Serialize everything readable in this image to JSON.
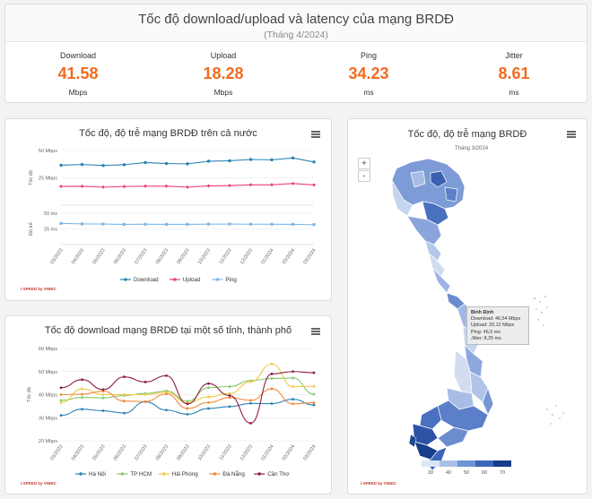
{
  "header": {
    "title": "Tốc độ download/upload và latency của mạng BRDĐ",
    "subtitle": "(Tháng 4/2024)",
    "stats": [
      {
        "label": "Download",
        "value": "41.58",
        "unit": "Mbps"
      },
      {
        "label": "Upload",
        "value": "18.28",
        "unit": "Mbps"
      },
      {
        "label": "Ping",
        "value": "34.23",
        "unit": "ms"
      },
      {
        "label": "Jitter",
        "value": "8.61",
        "unit": "ms"
      }
    ]
  },
  "national_chart": {
    "title": "Tốc độ, độ trễ mạng BRDĐ trên cả nước",
    "brand": "i-SPEED by VNNIC",
    "menu_icon": "hamburger-icon"
  },
  "province_chart": {
    "title": "Tốc độ download mạng BRDĐ tại một số tỉnh, thành phố",
    "brand": "i-SPEED by VNNIC",
    "menu_icon": "hamburger-icon"
  },
  "map_panel": {
    "title": "Tốc độ, độ trễ mạng BRDĐ",
    "subtitle": "Tháng 3/2024",
    "zoom_in": "+",
    "zoom_out": "-",
    "brand": "i-SPEED by VNNIC",
    "tooltip": {
      "name": "Bình Định",
      "download": "Download: 46,54 Mbps",
      "upload": "Upload: 20,12 Mbps",
      "ping": "Ping: 46,5 ms",
      "jitter": "Jitter: 8,25 ms"
    },
    "color_scale": {
      "ticks": [
        "30",
        "40",
        "50",
        "60",
        "70"
      ],
      "colors": [
        "#dbe6f5",
        "#a9c0e6",
        "#6f93d4",
        "#3b66b8",
        "#183d8a"
      ]
    }
  },
  "chart_data": [
    {
      "type": "line",
      "title": "Tốc độ, độ trễ mạng BRDĐ trên cả nước",
      "categories": [
        "03/2023",
        "04/2023",
        "05/2023",
        "06/2023",
        "07/2023",
        "08/2023",
        "09/2023",
        "10/2023",
        "11/2023",
        "12/2023",
        "01/2024",
        "02/2024",
        "03/2024"
      ],
      "panels": [
        {
          "ylabel": "Tốc độ",
          "yticks": [
            "25 Mbps",
            "50 Mbps"
          ],
          "ylim": [
            0,
            50
          ]
        },
        {
          "ylabel": "Độ trễ",
          "yticks": [
            "25 ms",
            "50 ms"
          ],
          "ylim": [
            0,
            50
          ]
        }
      ],
      "series": [
        {
          "name": "Download",
          "color": "#2a83b3",
          "panel": 0,
          "values": [
            36.5,
            37.2,
            36.3,
            37.0,
            39.0,
            38.1,
            37.8,
            40.2,
            40.6,
            41.8,
            41.5,
            43.2,
            39.5
          ]
        },
        {
          "name": "Upload",
          "color": "#e8407a",
          "panel": 0,
          "values": [
            17.2,
            17.3,
            16.5,
            17.0,
            17.4,
            17.4,
            16.5,
            17.6,
            17.9,
            18.6,
            18.6,
            19.8,
            18.5
          ]
        },
        {
          "name": "Ping",
          "color": "#7fb8e6",
          "panel": 1,
          "values": [
            33.8,
            32.9,
            32.7,
            32.2,
            32.4,
            32.2,
            32.3,
            32.6,
            32.7,
            32.5,
            32.4,
            32.3,
            31.8
          ]
        }
      ],
      "legend": "bottom"
    },
    {
      "type": "line",
      "title": "Tốc độ download mạng BRDĐ tại một số tỉnh, thành phố",
      "ylabel": "Tốc độ",
      "yticks": [
        "20 Mbps",
        "30 Mbps",
        "40 Mbps",
        "50 Mbps",
        "60 Mbps"
      ],
      "ylim": [
        20,
        60
      ],
      "categories": [
        "03/2023",
        "04/2023",
        "05/2023",
        "06/2023",
        "07/2023",
        "08/2023",
        "09/2023",
        "10/2023",
        "11/2023",
        "12/2023",
        "01/2024",
        "02/2024",
        "03/2024"
      ],
      "series": [
        {
          "name": "Hà Nội",
          "color": "#2a83b3",
          "values": [
            31.0,
            33.7,
            33.0,
            32.0,
            36.9,
            33.3,
            31.5,
            34.0,
            34.8,
            36.2,
            36.1,
            38.0,
            35.5
          ]
        },
        {
          "name": "TP HCM",
          "color": "#86c96b",
          "values": [
            37.5,
            38.8,
            38.6,
            39.6,
            40.5,
            41.6,
            37.2,
            43.0,
            43.5,
            46.1,
            47.0,
            47.2,
            40.2
          ]
        },
        {
          "name": "Hải Phòng",
          "color": "#f2c94c",
          "values": [
            36.5,
            42.5,
            40.0,
            40.0,
            40.0,
            41.0,
            36.5,
            39.0,
            40.5,
            45.6,
            53.3,
            43.5,
            43.6
          ]
        },
        {
          "name": "Đà Nẵng",
          "color": "#f08a3e",
          "values": [
            40.0,
            40.2,
            41.5,
            37.2,
            37.0,
            40.3,
            34.0,
            36.6,
            38.7,
            37.5,
            42.5,
            36.0,
            36.5
          ]
        },
        {
          "name": "Cần Thơ",
          "color": "#8e1f3f",
          "values": [
            43.0,
            46.5,
            42.2,
            47.7,
            45.5,
            48.2,
            36.0,
            44.8,
            39.6,
            27.6,
            49.0,
            50.0,
            49.5
          ]
        }
      ],
      "legend": "bottom"
    }
  ]
}
